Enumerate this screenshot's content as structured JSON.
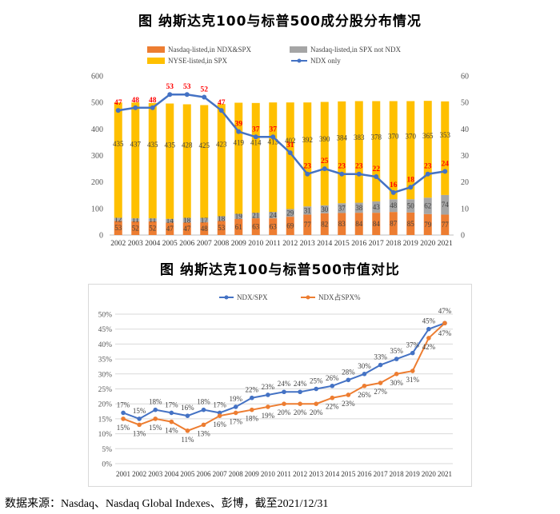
{
  "titles": {
    "chart1": "图 纳斯达克100与标普500成分股分布情况",
    "chart2": "图 纳斯达克100与标普500市值对比"
  },
  "source": "数据来源：Nasdaq、Nasdaq Global Indexes、彭博，截至2021/12/31",
  "chart_data": [
    {
      "type": "bar",
      "stacked": true,
      "categories": [
        "2002",
        "2003",
        "2004",
        "2005",
        "2006",
        "2007",
        "2008",
        "2009",
        "2010",
        "2011",
        "2012",
        "2013",
        "2014",
        "2015",
        "2016",
        "2017",
        "2018",
        "2019",
        "2020",
        "2021"
      ],
      "series": [
        {
          "name": "Nasdaq-listed,in NDX&SPX",
          "color": "#ED7D31",
          "values": [
            53,
            52,
            52,
            47,
            47,
            48,
            53,
            61,
            63,
            63,
            69,
            77,
            82,
            83,
            84,
            84,
            87,
            85,
            79,
            77
          ]
        },
        {
          "name": "Nasdaq-listed,in SPX not NDX",
          "color": "#A5A5A5",
          "values": [
            12,
            11,
            11,
            14,
            18,
            17,
            18,
            19,
            21,
            24,
            29,
            31,
            30,
            37,
            38,
            43,
            48,
            50,
            62,
            74
          ]
        },
        {
          "name": "NYSE-listed,in SPX",
          "color": "#FFC000",
          "values": [
            435,
            437,
            435,
            435,
            428,
            425,
            423,
            419,
            414,
            413,
            402,
            392,
            390,
            384,
            383,
            378,
            370,
            370,
            365,
            353
          ]
        },
        {
          "name": "NDX only",
          "color": "#4472C4",
          "type": "line",
          "axis": "right",
          "values": [
            47,
            48,
            48,
            53,
            53,
            52,
            47,
            39,
            37,
            37,
            31,
            23,
            25,
            23,
            23,
            22,
            16,
            18,
            23,
            24
          ]
        }
      ],
      "ylim": [
        0,
        600
      ],
      "y2lim": [
        0,
        60
      ],
      "yticks": [
        "0",
        "100",
        "200",
        "300",
        "400",
        "500",
        "600"
      ],
      "y2ticks": [
        "0",
        "10",
        "20",
        "30",
        "40",
        "50",
        "60"
      ],
      "legend": "top"
    },
    {
      "type": "line",
      "x": [
        "2001",
        "2002",
        "2003",
        "2004",
        "2005",
        "2006",
        "2007",
        "2008",
        "2009",
        "2010",
        "2011",
        "2012",
        "2013",
        "2014",
        "2015",
        "2016",
        "2017",
        "2018",
        "2019",
        "2020",
        "2021"
      ],
      "series": [
        {
          "name": "NDX/SPX",
          "color": "#4472C4",
          "values": [
            17,
            15,
            18,
            17,
            16,
            18,
            17,
            19,
            22,
            23,
            24,
            24,
            25,
            26,
            28,
            30,
            33,
            35,
            37,
            45,
            47
          ],
          "labels": [
            "17%",
            "15%",
            "18%",
            "17%",
            "16%",
            "18%",
            "17%",
            "19%",
            "22%",
            "23%",
            "24%",
            "24%",
            "25%",
            "26%",
            "28%",
            "30%",
            "33%",
            "35%",
            "37%",
            "45%",
            "47%"
          ]
        },
        {
          "name": "NDX占SPX%",
          "color": "#ED7D31",
          "values": [
            15,
            13,
            15,
            14,
            11,
            13,
            16,
            17,
            18,
            19,
            20,
            20,
            20,
            22,
            23,
            26,
            27,
            30,
            31,
            42,
            47
          ],
          "labels": [
            "15%",
            "13%",
            "15%",
            "14%",
            "11%",
            "13%",
            "16%",
            "17%",
            "18%",
            "19%",
            "20%",
            "20%",
            "20%",
            "22%",
            "23%",
            "26%",
            "27%",
            "30%",
            "31%",
            "42%",
            "47%"
          ]
        }
      ],
      "ylim": [
        0,
        50
      ],
      "yticks": [
        "0%",
        "5%",
        "10%",
        "15%",
        "20%",
        "25%",
        "30%",
        "35%",
        "40%",
        "45%",
        "50%"
      ],
      "grid": true,
      "legend": "top"
    }
  ]
}
